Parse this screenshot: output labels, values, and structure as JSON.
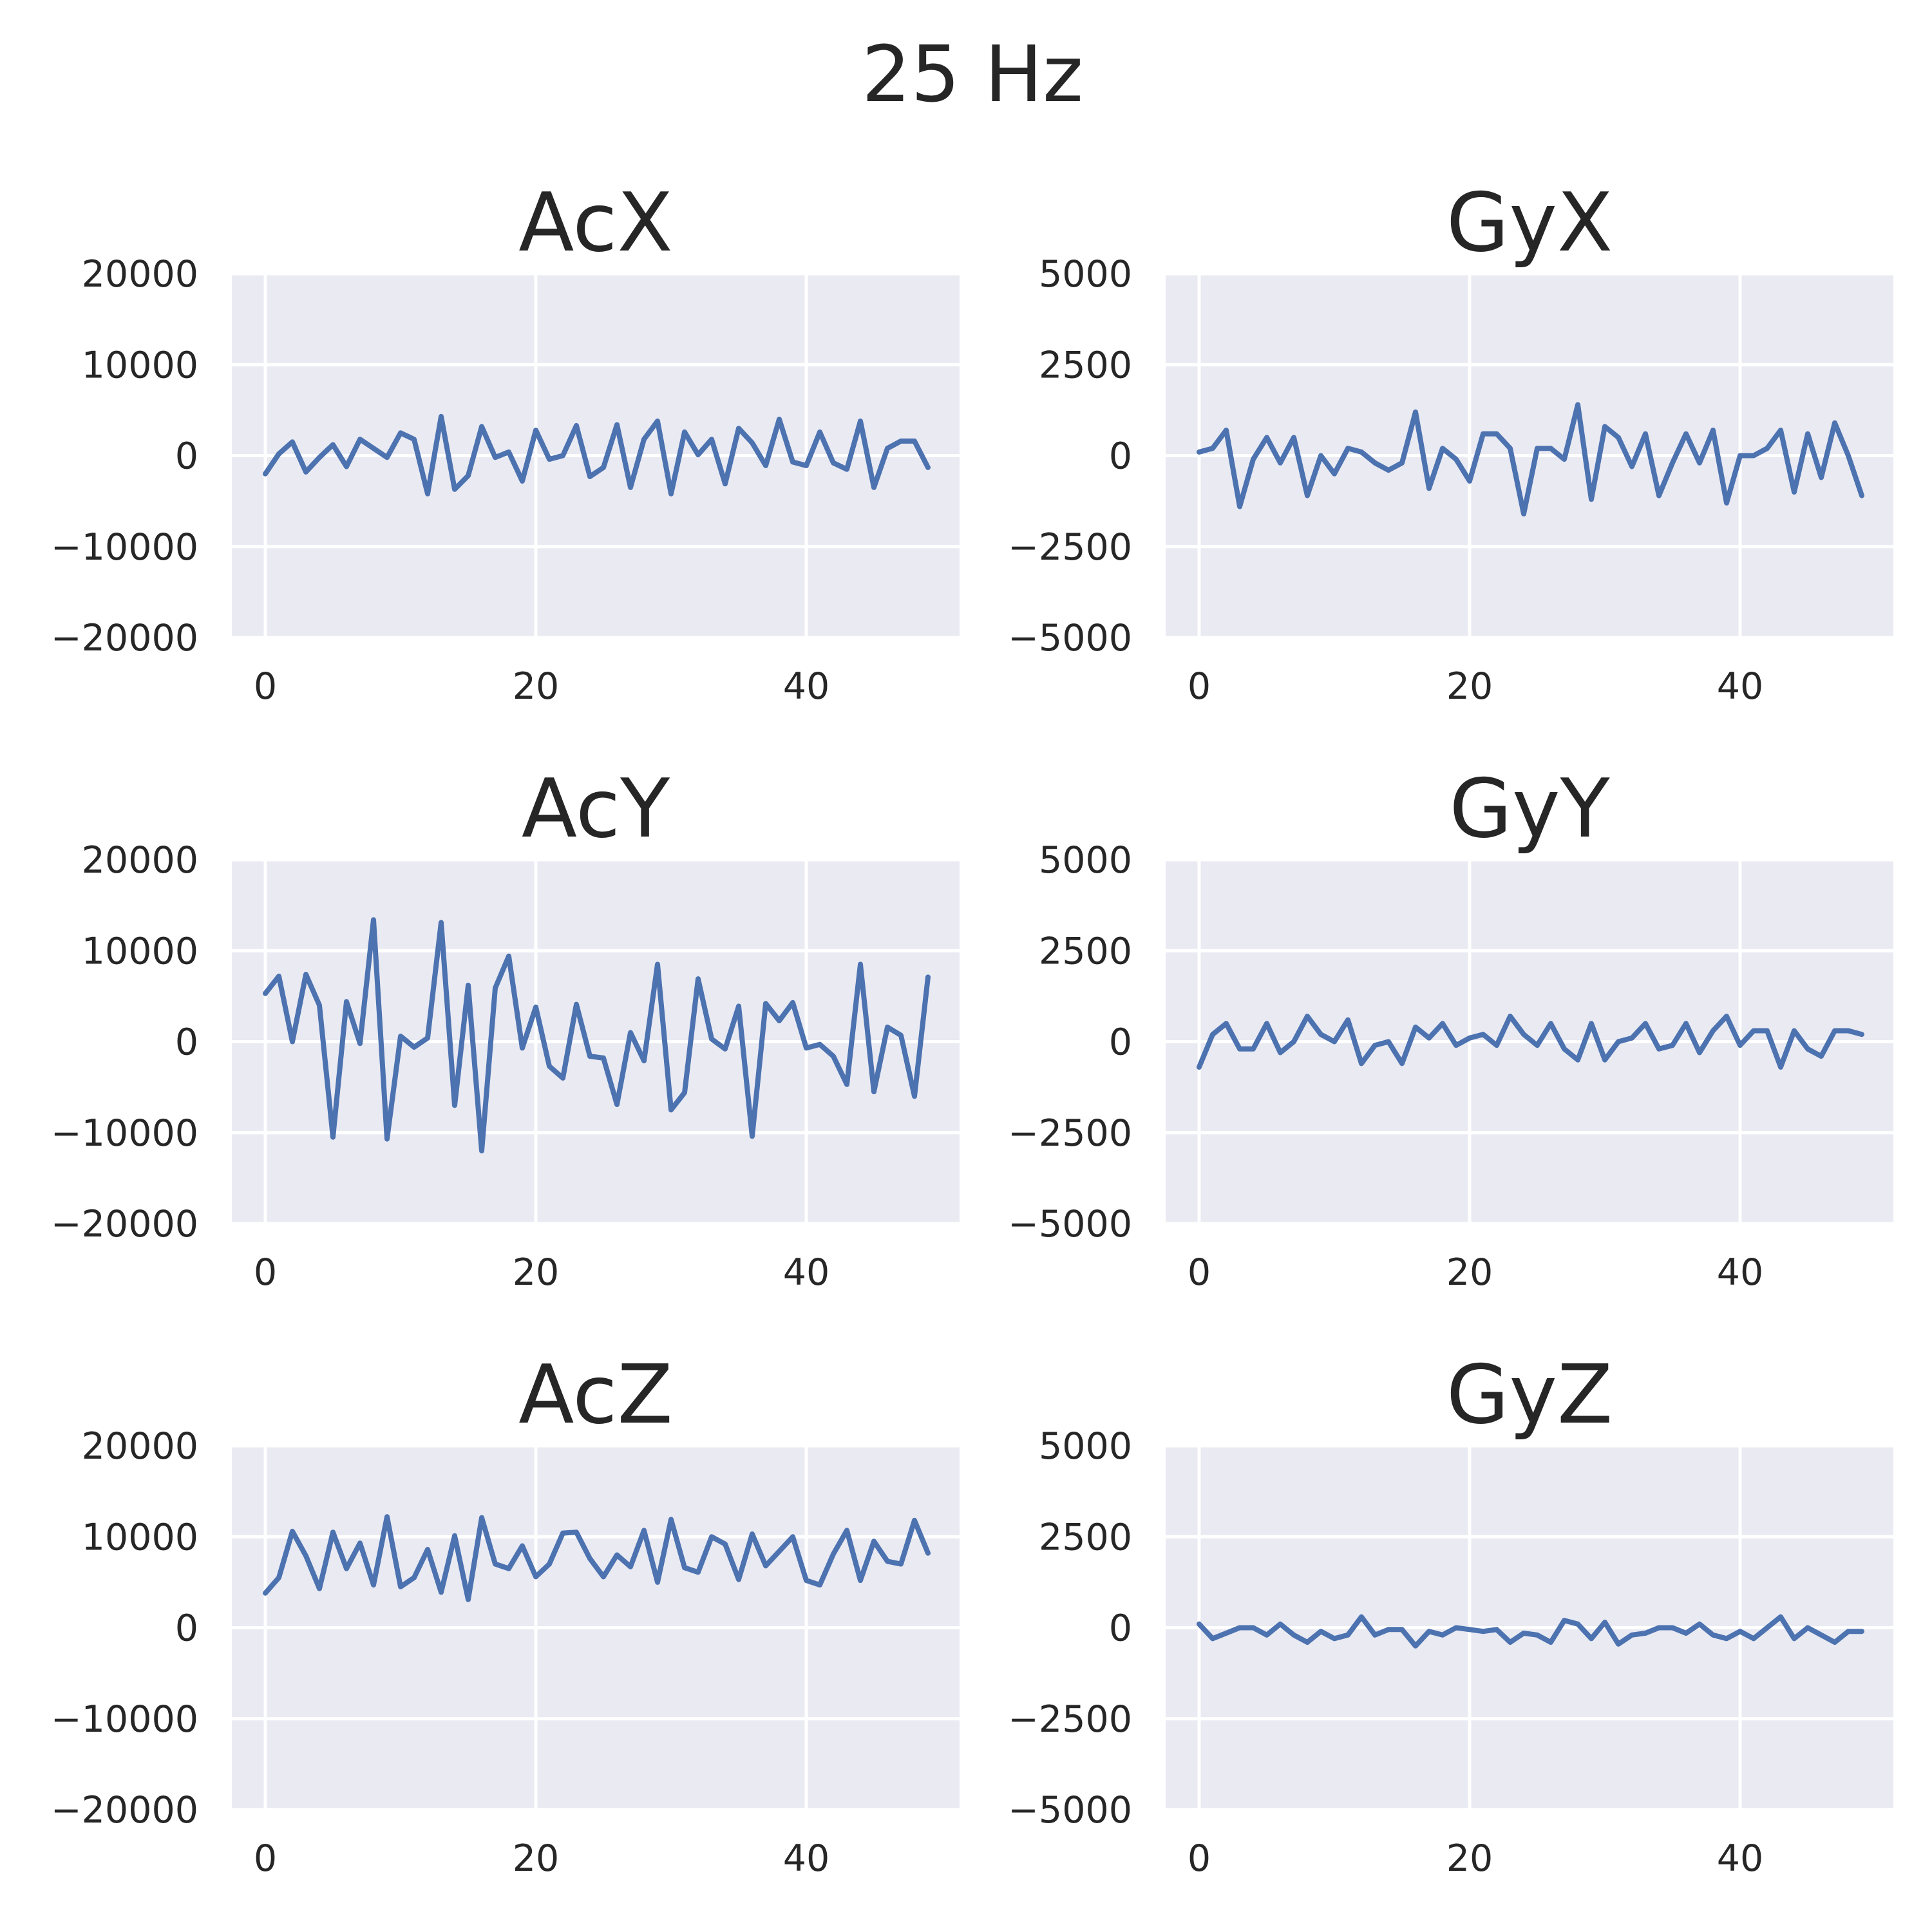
{
  "figure": {
    "suptitle": "25 Hz"
  },
  "chart_data": [
    {
      "type": "line",
      "title": "AcX",
      "xlabel": "",
      "ylabel": "",
      "xlim": [
        0,
        49
      ],
      "ylim": [
        -20000,
        20000
      ],
      "xticks": [
        0,
        20,
        40
      ],
      "xtick_labels": [
        "0",
        "20",
        "40"
      ],
      "yticks": [
        20000,
        10000,
        0,
        -10000,
        -20000
      ],
      "ytick_labels": [
        "20000",
        "10000",
        "0",
        "−10000",
        "−20000"
      ],
      "grid": true,
      "series": [
        {
          "color": "#4c72b0",
          "x": [
            0,
            1,
            2,
            3,
            4,
            5,
            6,
            7,
            8,
            9,
            10,
            11,
            12,
            13,
            14,
            15,
            16,
            17,
            18,
            19,
            20,
            21,
            22,
            23,
            24,
            25,
            26,
            27,
            28,
            29,
            30,
            31,
            32,
            33,
            34,
            35,
            36,
            37,
            38,
            39,
            40,
            41,
            42,
            43,
            44,
            45,
            46,
            47,
            48,
            49
          ],
          "values": [
            -2000,
            200,
            1500,
            -1800,
            -200,
            1200,
            -1200,
            1800,
            800,
            -200,
            2500,
            1800,
            -4200,
            4300,
            -3700,
            -2200,
            3200,
            -200,
            400,
            -2800,
            2800,
            -400,
            0,
            3300,
            -2300,
            -1300,
            3400,
            -3500,
            1800,
            3800,
            -4200,
            2600,
            100,
            1800,
            -3100,
            3000,
            1400,
            -1100,
            4000,
            -700,
            -1100,
            2600,
            -800,
            -1500,
            3800,
            -3500,
            800,
            1600,
            1600,
            -1300
          ]
        }
      ]
    },
    {
      "type": "line",
      "title": "GyX",
      "xlabel": "",
      "ylabel": "",
      "xlim": [
        0,
        49
      ],
      "ylim": [
        -5000,
        5000
      ],
      "xticks": [
        0,
        20,
        40
      ],
      "xtick_labels": [
        "0",
        "20",
        "40"
      ],
      "yticks": [
        5000,
        2500,
        0,
        -2500,
        -5000
      ],
      "ytick_labels": [
        "5000",
        "2500",
        "0",
        "−2500",
        "−5000"
      ],
      "grid": true,
      "series": [
        {
          "color": "#4c72b0",
          "x": [
            0,
            1,
            2,
            3,
            4,
            5,
            6,
            7,
            8,
            9,
            10,
            11,
            12,
            13,
            14,
            15,
            16,
            17,
            18,
            19,
            20,
            21,
            22,
            23,
            24,
            25,
            26,
            27,
            28,
            29,
            30,
            31,
            32,
            33,
            34,
            35,
            36,
            37,
            38,
            39,
            40,
            41,
            42,
            43,
            44,
            45,
            46,
            47,
            48,
            49
          ],
          "values": [
            100,
            200,
            700,
            -1400,
            -100,
            500,
            -200,
            500,
            -1100,
            0,
            -500,
            200,
            100,
            -200,
            -400,
            -200,
            1200,
            -900,
            200,
            -100,
            -700,
            600,
            600,
            200,
            -1600,
            200,
            200,
            -100,
            1400,
            -1200,
            800,
            500,
            -300,
            600,
            -1100,
            -200,
            600,
            -200,
            700,
            -1300,
            0,
            0,
            200,
            700,
            -1000,
            600,
            -600,
            900,
            0,
            -1100
          ]
        }
      ]
    },
    {
      "type": "line",
      "title": "AcY",
      "xlabel": "",
      "ylabel": "",
      "xlim": [
        0,
        49
      ],
      "ylim": [
        -20000,
        20000
      ],
      "xticks": [
        0,
        20,
        40
      ],
      "xtick_labels": [
        "0",
        "20",
        "40"
      ],
      "yticks": [
        20000,
        10000,
        0,
        -10000,
        -20000
      ],
      "ytick_labels": [
        "20000",
        "10000",
        "0",
        "−10000",
        "−20000"
      ],
      "grid": true,
      "series": [
        {
          "color": "#4c72b0",
          "x": [
            0,
            1,
            2,
            3,
            4,
            5,
            6,
            7,
            8,
            9,
            10,
            11,
            12,
            13,
            14,
            15,
            16,
            17,
            18,
            19,
            20,
            21,
            22,
            23,
            24,
            25,
            26,
            27,
            28,
            29,
            30,
            31,
            32,
            33,
            34,
            35,
            36,
            37,
            38,
            39,
            40,
            41,
            42,
            43,
            44,
            45,
            46,
            47,
            48,
            49
          ],
          "values": [
            5300,
            7200,
            0,
            7400,
            4000,
            -10500,
            4400,
            -200,
            13400,
            -10700,
            600,
            -600,
            400,
            13100,
            -7000,
            6200,
            -12000,
            5900,
            9400,
            -700,
            3800,
            -2700,
            -4000,
            4100,
            -1600,
            -1800,
            -6900,
            1000,
            -2100,
            8500,
            -7500,
            -5600,
            6900,
            300,
            -800,
            3900,
            -10400,
            4200,
            2300,
            4300,
            -700,
            -300,
            -1600,
            -4700,
            8500,
            -5500,
            1600,
            700,
            -6000,
            7100
          ]
        }
      ]
    },
    {
      "type": "line",
      "title": "GyY",
      "xlabel": "",
      "ylabel": "",
      "xlim": [
        0,
        49
      ],
      "ylim": [
        -5000,
        5000
      ],
      "xticks": [
        0,
        20,
        40
      ],
      "xtick_labels": [
        "0",
        "20",
        "40"
      ],
      "yticks": [
        5000,
        2500,
        0,
        -2500,
        -5000
      ],
      "ytick_labels": [
        "5000",
        "2500",
        "0",
        "−2500",
        "−5000"
      ],
      "grid": true,
      "series": [
        {
          "color": "#4c72b0",
          "x": [
            0,
            1,
            2,
            3,
            4,
            5,
            6,
            7,
            8,
            9,
            10,
            11,
            12,
            13,
            14,
            15,
            16,
            17,
            18,
            19,
            20,
            21,
            22,
            23,
            24,
            25,
            26,
            27,
            28,
            29,
            30,
            31,
            32,
            33,
            34,
            35,
            36,
            37,
            38,
            39,
            40,
            41,
            42,
            43,
            44,
            45,
            46,
            47,
            48,
            49
          ],
          "values": [
            -700,
            200,
            500,
            -200,
            -200,
            500,
            -300,
            0,
            700,
            200,
            0,
            600,
            -600,
            -100,
            0,
            -600,
            400,
            100,
            500,
            -100,
            100,
            200,
            -100,
            700,
            200,
            -100,
            500,
            -200,
            -500,
            500,
            -500,
            0,
            100,
            500,
            -200,
            -100,
            500,
            -300,
            300,
            700,
            -100,
            300,
            300,
            -700,
            300,
            -200,
            -400,
            300,
            300,
            200
          ]
        }
      ]
    },
    {
      "type": "line",
      "title": "AcZ",
      "xlabel": "",
      "ylabel": "",
      "xlim": [
        0,
        49
      ],
      "ylim": [
        -20000,
        20000
      ],
      "xticks": [
        0,
        20,
        40
      ],
      "xtick_labels": [
        "0",
        "20",
        "40"
      ],
      "yticks": [
        20000,
        10000,
        0,
        -10000,
        -20000
      ],
      "ytick_labels": [
        "20000",
        "10000",
        "0",
        "−10000",
        "−20000"
      ],
      "grid": true,
      "series": [
        {
          "color": "#4c72b0",
          "x": [
            0,
            1,
            2,
            3,
            4,
            5,
            6,
            7,
            8,
            9,
            10,
            11,
            12,
            13,
            14,
            15,
            16,
            17,
            18,
            19,
            20,
            21,
            22,
            23,
            24,
            25,
            26,
            27,
            28,
            29,
            30,
            31,
            32,
            33,
            34,
            35,
            36,
            37,
            38,
            39,
            40,
            41,
            42,
            43,
            44,
            45,
            46,
            47,
            48,
            49
          ],
          "values": [
            3800,
            5500,
            10600,
            7900,
            4300,
            10500,
            6500,
            9300,
            4700,
            12200,
            4500,
            5500,
            8600,
            3900,
            10100,
            3100,
            12100,
            7000,
            6500,
            9000,
            5600,
            7000,
            10400,
            10500,
            7600,
            5600,
            8000,
            6700,
            10700,
            5000,
            11900,
            6600,
            6100,
            10000,
            9200,
            5300,
            10300,
            6800,
            8400,
            10000,
            5200,
            4700,
            8100,
            10700,
            5200,
            9500,
            7300,
            7000,
            11800,
            8200
          ]
        }
      ]
    },
    {
      "type": "line",
      "title": "GyZ",
      "xlabel": "",
      "ylabel": "",
      "xlim": [
        0,
        49
      ],
      "ylim": [
        -5000,
        5000
      ],
      "xticks": [
        0,
        20,
        40
      ],
      "xtick_labels": [
        "0",
        "20",
        "40"
      ],
      "yticks": [
        5000,
        2500,
        0,
        -2500,
        -5000
      ],
      "ytick_labels": [
        "5000",
        "2500",
        "0",
        "−2500",
        "−5000"
      ],
      "grid": true,
      "series": [
        {
          "color": "#4c72b0",
          "x": [
            0,
            1,
            2,
            3,
            4,
            5,
            6,
            7,
            8,
            9,
            10,
            11,
            12,
            13,
            14,
            15,
            16,
            17,
            18,
            19,
            20,
            21,
            22,
            23,
            24,
            25,
            26,
            27,
            28,
            29,
            30,
            31,
            32,
            33,
            34,
            35,
            36,
            37,
            38,
            39,
            40,
            41,
            42,
            43,
            44,
            45,
            46,
            47,
            48,
            49
          ],
          "values": [
            100,
            -300,
            -150,
            0,
            0,
            -200,
            100,
            -200,
            -400,
            -100,
            -300,
            -200,
            300,
            -200,
            -50,
            -50,
            -500,
            -100,
            -200,
            0,
            -50,
            -100,
            -50,
            -400,
            -150,
            -200,
            -400,
            200,
            100,
            -300,
            150,
            -450,
            -200,
            -150,
            0,
            0,
            -150,
            100,
            -200,
            -300,
            -100,
            -300,
            0,
            300,
            -300,
            0,
            -200,
            -400,
            -100,
            -100
          ]
        }
      ]
    }
  ]
}
